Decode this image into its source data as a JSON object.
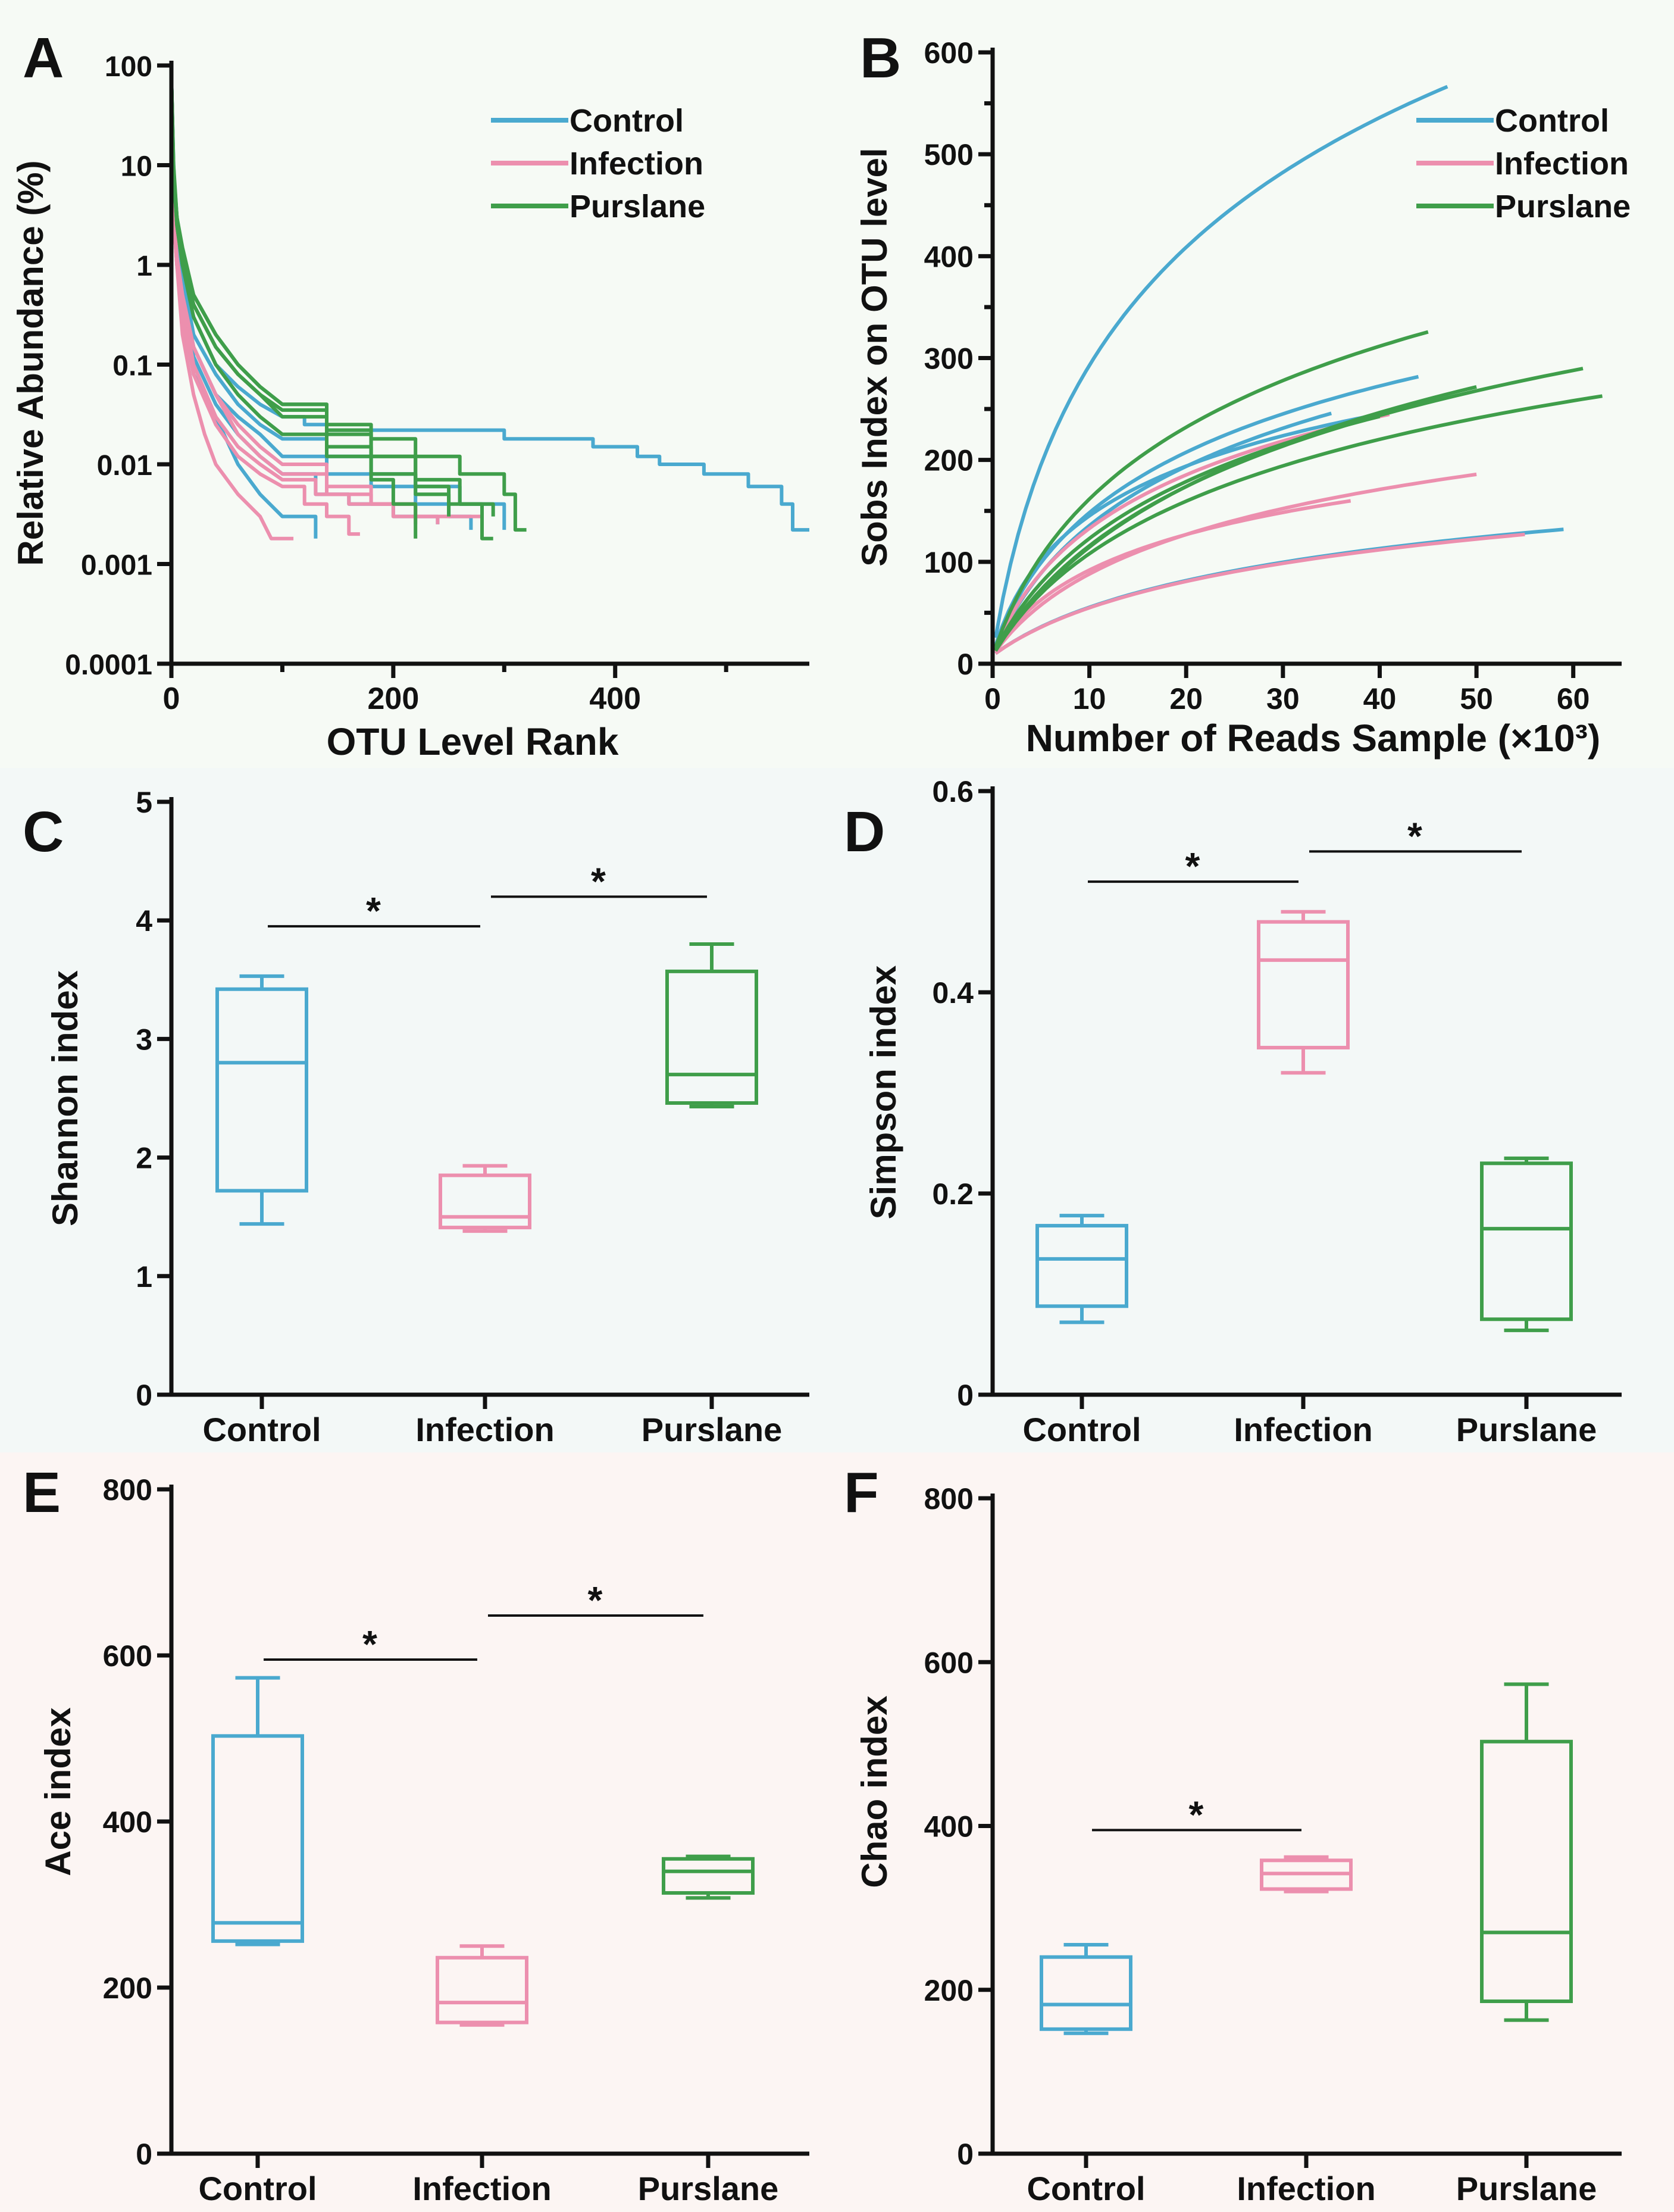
{
  "colors": {
    "control": "#4aa9cf",
    "infection": "#ec8fae",
    "purslane": "#3f9e4a",
    "axis": "#111111"
  },
  "chart_data": [
    {
      "panel": "A",
      "type": "line",
      "xlabel": "OTU Level Rank",
      "ylabel": "Relative Abundance (%)",
      "xlim": [
        0,
        575
      ],
      "ylim": [
        0.0001,
        100
      ],
      "yscale": "log",
      "xticks": [
        "0",
        "200",
        "400"
      ],
      "yticks": [
        "100",
        "10",
        "1",
        "0.1",
        "0.01",
        "0.001",
        "0.0001"
      ],
      "legend": [
        "Control",
        "Infection",
        "Purslane"
      ],
      "series": [
        {
          "group": "Control",
          "x": [
            0,
            2,
            5,
            10,
            20,
            40,
            60,
            80,
            100,
            120,
            140,
            150,
            200,
            300,
            380,
            420,
            440,
            480,
            520,
            550,
            560,
            575
          ],
          "y": [
            80,
            10,
            2,
            0.8,
            0.3,
            0.1,
            0.06,
            0.04,
            0.03,
            0.025,
            0.022,
            0.022,
            0.022,
            0.018,
            0.015,
            0.012,
            0.01,
            0.008,
            0.006,
            0.004,
            0.0022,
            0.0022
          ]
        },
        {
          "group": "Control",
          "x": [
            0,
            2,
            5,
            10,
            20,
            40,
            60,
            80,
            100,
            140,
            180,
            220,
            250,
            270
          ],
          "y": [
            80,
            8,
            2,
            0.6,
            0.15,
            0.05,
            0.03,
            0.02,
            0.012,
            0.008,
            0.006,
            0.004,
            0.003,
            0.0022
          ]
        },
        {
          "group": "Control",
          "x": [
            0,
            2,
            5,
            10,
            20,
            40,
            60,
            80,
            100,
            140,
            180,
            220,
            260,
            300
          ],
          "y": [
            80,
            7,
            2,
            0.8,
            0.2,
            0.08,
            0.04,
            0.025,
            0.018,
            0.012,
            0.008,
            0.006,
            0.004,
            0.0022
          ]
        },
        {
          "group": "Control",
          "x": [
            0,
            2,
            5,
            10,
            20,
            40,
            60,
            80,
            100,
            130
          ],
          "y": [
            80,
            6,
            1,
            0.3,
            0.08,
            0.03,
            0.01,
            0.005,
            0.003,
            0.0018
          ]
        },
        {
          "group": "Control",
          "x": [
            0,
            2,
            5,
            10,
            20,
            40,
            60,
            80,
            100,
            130,
            160,
            200,
            240
          ],
          "y": [
            80,
            6,
            1.5,
            0.5,
            0.12,
            0.04,
            0.02,
            0.012,
            0.008,
            0.005,
            0.004,
            0.003,
            0.0025
          ]
        },
        {
          "group": "Infection",
          "x": [
            0,
            2,
            5,
            10,
            20,
            30,
            40,
            60,
            80,
            90,
            110
          ],
          "y": [
            80,
            3,
            1,
            0.2,
            0.05,
            0.02,
            0.01,
            0.005,
            0.003,
            0.0018,
            0.0018
          ]
        },
        {
          "group": "Infection",
          "x": [
            0,
            2,
            5,
            10,
            20,
            40,
            60,
            80,
            100,
            140,
            180,
            220,
            280
          ],
          "y": [
            80,
            3,
            1.2,
            0.5,
            0.15,
            0.05,
            0.02,
            0.012,
            0.008,
            0.005,
            0.004,
            0.003,
            0.0022
          ]
        },
        {
          "group": "Infection",
          "x": [
            0,
            2,
            5,
            10,
            20,
            40,
            60,
            80,
            100,
            130,
            160,
            200,
            240
          ],
          "y": [
            80,
            3,
            1,
            0.4,
            0.1,
            0.03,
            0.015,
            0.01,
            0.007,
            0.005,
            0.004,
            0.003,
            0.0025
          ]
        },
        {
          "group": "Infection",
          "x": [
            0,
            2,
            5,
            10,
            20,
            40,
            60,
            80,
            100,
            120,
            140,
            160,
            170
          ],
          "y": [
            80,
            3,
            1,
            0.3,
            0.08,
            0.025,
            0.012,
            0.008,
            0.006,
            0.004,
            0.003,
            0.002,
            0.002
          ]
        },
        {
          "group": "Infection",
          "x": [
            0,
            2,
            5,
            10,
            20,
            40,
            60,
            80,
            100,
            140,
            180,
            220
          ],
          "y": [
            80,
            3,
            1.2,
            0.5,
            0.15,
            0.05,
            0.025,
            0.015,
            0.01,
            0.006,
            0.004,
            0.0025
          ]
        },
        {
          "group": "Purslane",
          "x": [
            0,
            2,
            5,
            10,
            20,
            40,
            60,
            80,
            100,
            140,
            180,
            220,
            260,
            300,
            310,
            320
          ],
          "y": [
            80,
            10,
            3,
            1,
            0.5,
            0.2,
            0.1,
            0.06,
            0.04,
            0.025,
            0.018,
            0.012,
            0.008,
            0.005,
            0.0022,
            0.0022
          ]
        },
        {
          "group": "Purslane",
          "x": [
            0,
            2,
            5,
            10,
            20,
            40,
            60,
            80,
            100,
            140,
            180,
            220,
            250,
            280,
            290
          ],
          "y": [
            80,
            8,
            3,
            1.2,
            0.4,
            0.15,
            0.08,
            0.05,
            0.035,
            0.02,
            0.012,
            0.006,
            0.004,
            0.0018,
            0.0018
          ]
        },
        {
          "group": "Purslane",
          "x": [
            0,
            2,
            5,
            10,
            20,
            40,
            60,
            80,
            100,
            140,
            180,
            200,
            220
          ],
          "y": [
            80,
            8,
            2.5,
            1,
            0.3,
            0.1,
            0.05,
            0.03,
            0.02,
            0.012,
            0.007,
            0.004,
            0.0018
          ]
        },
        {
          "group": "Purslane",
          "x": [
            0,
            2,
            5,
            10,
            20,
            40,
            60,
            80,
            100,
            140,
            180,
            220,
            250
          ],
          "y": [
            80,
            8,
            2.5,
            1,
            0.4,
            0.15,
            0.08,
            0.05,
            0.03,
            0.015,
            0.008,
            0.005,
            0.003
          ]
        },
        {
          "group": "Purslane",
          "x": [
            0,
            2,
            5,
            10,
            20,
            40,
            60,
            80,
            100,
            140,
            180,
            220,
            260,
            290
          ],
          "y": [
            80,
            9,
            3,
            1.5,
            0.5,
            0.2,
            0.1,
            0.06,
            0.04,
            0.022,
            0.012,
            0.007,
            0.004,
            0.003
          ]
        }
      ]
    },
    {
      "panel": "B",
      "type": "line",
      "xlabel": "Number of Reads Sample (×10³)",
      "ylabel": "Sobs Index on OTU level",
      "xlim": [
        0,
        65
      ],
      "ylim": [
        0,
        600
      ],
      "xticks": [
        "0",
        "10",
        "20",
        "30",
        "40",
        "50",
        "60"
      ],
      "yticks": [
        "0",
        "100",
        "200",
        "300",
        "400",
        "500",
        "600"
      ],
      "legend": [
        "Control",
        "Infection",
        "Purslane"
      ],
      "series": [
        {
          "group": "Control",
          "xmax": 47,
          "ymax": 567,
          "k": 3.5
        },
        {
          "group": "Control",
          "xmax": 44,
          "ymax": 282,
          "k": 4
        },
        {
          "group": "Control",
          "xmax": 41,
          "ymax": 247,
          "k": 2.5
        },
        {
          "group": "Control",
          "xmax": 35,
          "ymax": 246,
          "k": 5
        },
        {
          "group": "Control",
          "xmax": 59,
          "ymax": 132,
          "k": 9
        },
        {
          "group": "Infection",
          "xmax": 41,
          "ymax": 245,
          "k": 4
        },
        {
          "group": "Infection",
          "xmax": 50,
          "ymax": 186,
          "k": 6
        },
        {
          "group": "Infection",
          "xmax": 37,
          "ymax": 160,
          "k": 4
        },
        {
          "group": "Infection",
          "xmax": 55,
          "ymax": 127,
          "k": 9
        },
        {
          "group": "Purslane",
          "xmax": 45,
          "ymax": 326,
          "k": 5
        },
        {
          "group": "Purslane",
          "xmax": 61,
          "ymax": 290,
          "k": 8
        },
        {
          "group": "Purslane",
          "xmax": 63,
          "ymax": 263,
          "k": 7
        },
        {
          "group": "Purslane",
          "xmax": 50,
          "ymax": 272,
          "k": 9
        },
        {
          "group": "Purslane",
          "xmax": 40,
          "ymax": 243,
          "k": 6
        }
      ]
    },
    {
      "panel": "C",
      "type": "box",
      "ylabel": "Shannon index",
      "ylim": [
        0,
        5
      ],
      "yticks": [
        "0",
        "1",
        "2",
        "3",
        "4",
        "5"
      ],
      "categories": [
        "Control",
        "Infection",
        "Purslane"
      ],
      "boxes": [
        {
          "min": 1.44,
          "q1": 1.72,
          "median": 2.8,
          "q3": 3.42,
          "max": 3.53
        },
        {
          "min": 1.38,
          "q1": 1.41,
          "median": 1.5,
          "q3": 1.85,
          "max": 1.93
        },
        {
          "min": 2.43,
          "q1": 2.46,
          "median": 2.7,
          "q3": 3.57,
          "max": 3.8
        }
      ],
      "significance": [
        {
          "from": 0,
          "to": 1,
          "y": 3.95,
          "label": "*"
        },
        {
          "from": 1,
          "to": 2,
          "y": 4.2,
          "label": "*"
        }
      ]
    },
    {
      "panel": "D",
      "type": "box",
      "ylabel": "Simpson index",
      "ylim": [
        0,
        0.6
      ],
      "yticks": [
        "0",
        "0.2",
        "0.4",
        "0.6"
      ],
      "categories": [
        "Control",
        "Infection",
        "Purslane"
      ],
      "boxes": [
        {
          "min": 0.072,
          "q1": 0.088,
          "median": 0.135,
          "q3": 0.168,
          "max": 0.178
        },
        {
          "min": 0.32,
          "q1": 0.345,
          "median": 0.432,
          "q3": 0.47,
          "max": 0.48
        },
        {
          "min": 0.064,
          "q1": 0.075,
          "median": 0.165,
          "q3": 0.23,
          "max": 0.235
        }
      ],
      "significance": [
        {
          "from": 0,
          "to": 1,
          "y": 0.51,
          "label": "*"
        },
        {
          "from": 1,
          "to": 2,
          "y": 0.54,
          "label": "*"
        }
      ]
    },
    {
      "panel": "E",
      "type": "box",
      "ylabel": "Ace index",
      "ylim": [
        0,
        800
      ],
      "yticks": [
        "0",
        "200",
        "400",
        "600",
        "800"
      ],
      "categories": [
        "Control",
        "Infection",
        "Purslane"
      ],
      "boxes": [
        {
          "min": 252,
          "q1": 256,
          "median": 278,
          "q3": 503,
          "max": 573
        },
        {
          "min": 155,
          "q1": 158,
          "median": 182,
          "q3": 236,
          "max": 250
        },
        {
          "min": 308,
          "q1": 314,
          "median": 340,
          "q3": 355,
          "max": 358
        }
      ],
      "significance": [
        {
          "from": 0,
          "to": 1,
          "y": 595,
          "label": "*"
        },
        {
          "from": 1,
          "to": 2,
          "y": 648,
          "label": "*"
        }
      ]
    },
    {
      "panel": "F",
      "type": "box",
      "ylabel": "Chao index",
      "ylim": [
        0,
        800
      ],
      "yticks": [
        "0",
        "200",
        "400",
        "600",
        "800"
      ],
      "categories": [
        "Control",
        "Infection",
        "Purslane"
      ],
      "boxes": [
        {
          "min": 147,
          "q1": 152,
          "median": 182,
          "q3": 240,
          "max": 255
        },
        {
          "min": 320,
          "q1": 323,
          "median": 342,
          "q3": 358,
          "max": 362
        },
        {
          "min": 163,
          "q1": 186,
          "median": 270,
          "q3": 503,
          "max": 573
        }
      ],
      "significance": [
        {
          "from": 0,
          "to": 1,
          "y": 395,
          "label": "*"
        }
      ]
    }
  ]
}
